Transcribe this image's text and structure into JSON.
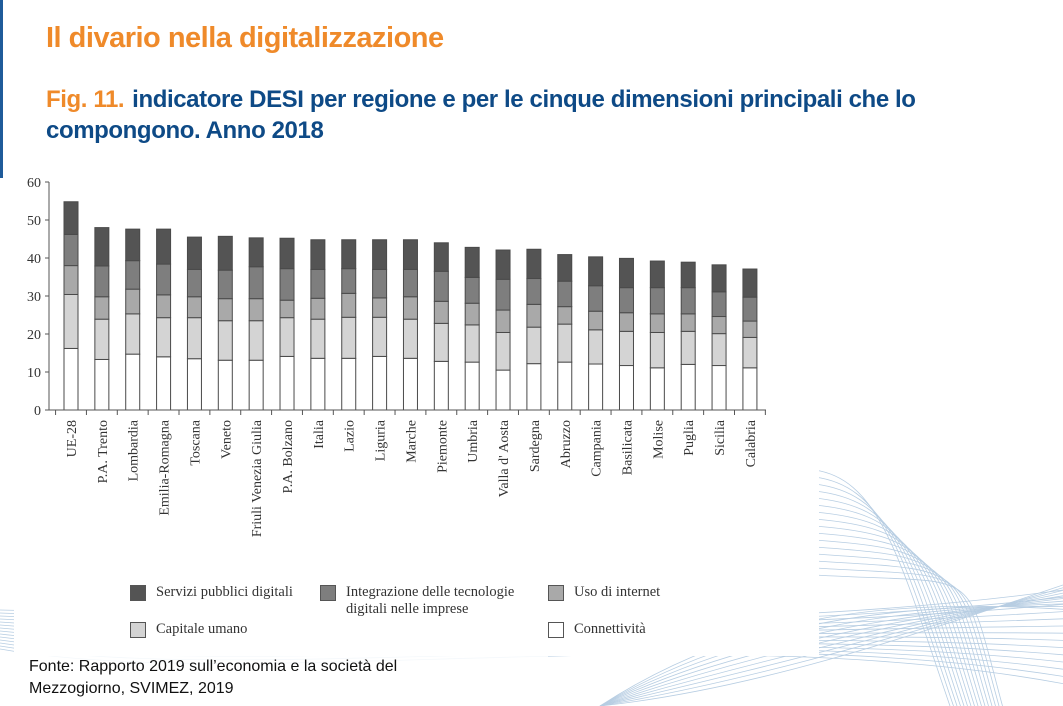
{
  "header": {
    "section_title": "Il divario nella digitalizzazione",
    "figure_number": "Fig. 11.",
    "figure_title": "indicatore DESI per regione e per le cinque dimensioni principali che lo compongono. Anno 2018"
  },
  "source": {
    "line1": "Fonte: Rapporto 2019 sull’economia e la società del",
    "line2": "Mezzogiorno, SVIMEZ, 2019"
  },
  "colors": {
    "title_orange": "#ef8a2a",
    "title_blue": "#0e4a86",
    "connettivita": "#ffffff",
    "capitale_umano": "#d4d4d4",
    "uso_internet": "#a9a9a9",
    "integrazione": "#7e7e7e",
    "servizi_pubblici": "#545454"
  },
  "chart_data": {
    "type": "bar",
    "stacked": true,
    "title": "",
    "xlabel": "",
    "ylabel": "",
    "ylim": [
      0,
      60
    ],
    "yticks": [
      0,
      10,
      20,
      30,
      40,
      50,
      60
    ],
    "grid": false,
    "legend_position": "bottom",
    "categories": [
      "UE-28",
      "P.A. Trento",
      "Lombardia",
      "Emilia-Romagna",
      "Toscana",
      "Veneto",
      "Friuli Venezia Giulia",
      "P.A. Bolzano",
      "Italia",
      "Lazio",
      "Liguria",
      "Marche",
      "Piemonte",
      "Umbria",
      "Valla d' Aosta",
      "Sardegna",
      "Abruzzo",
      "Campania",
      "Basilicata",
      "Molise",
      "Puglia",
      "Sicilia",
      "Calabria"
    ],
    "series": [
      {
        "name": "Connettività",
        "key": "connettivita",
        "values": [
          16.2,
          13.3,
          14.7,
          14.0,
          13.5,
          13.1,
          13.1,
          14.1,
          13.6,
          13.6,
          14.1,
          13.6,
          12.8,
          12.6,
          10.5,
          12.2,
          12.6,
          12.1,
          11.7,
          11.1,
          12.0,
          11.7,
          11.1
        ]
      },
      {
        "name": "Capitale umano",
        "key": "capitale_umano",
        "values": [
          14.2,
          10.6,
          10.6,
          10.3,
          10.8,
          10.4,
          10.4,
          10.2,
          10.3,
          10.8,
          10.3,
          10.3,
          10.0,
          9.8,
          9.9,
          9.6,
          10.0,
          9.0,
          9.0,
          9.3,
          8.7,
          8.4,
          8.0
        ]
      },
      {
        "name": "Uso di internet",
        "key": "uso_internet",
        "values": [
          7.6,
          5.9,
          6.5,
          6.0,
          5.5,
          5.8,
          5.8,
          4.6,
          5.5,
          6.3,
          5.1,
          5.9,
          5.8,
          5.7,
          5.9,
          6.0,
          4.6,
          4.9,
          4.9,
          4.9,
          4.6,
          4.5,
          4.3
        ]
      },
      {
        "name": "Integrazione delle tecnologie digitali nelle imprese",
        "key": "integrazione",
        "values": [
          8.2,
          8.1,
          7.5,
          8.1,
          7.2,
          7.5,
          8.4,
          8.3,
          7.6,
          6.5,
          7.5,
          7.2,
          7.9,
          6.8,
          8.1,
          6.8,
          6.7,
          6.7,
          6.6,
          6.9,
          6.9,
          6.5,
          6.3
        ]
      },
      {
        "name": "Servizi pubblici digitali",
        "key": "servizi_pubblici",
        "values": [
          8.6,
          10.1,
          8.3,
          9.2,
          8.5,
          8.9,
          7.6,
          8.0,
          7.8,
          7.6,
          7.8,
          7.8,
          7.5,
          7.9,
          7.7,
          7.7,
          7.0,
          7.6,
          7.7,
          7.0,
          6.7,
          7.1,
          7.4
        ]
      }
    ],
    "totals": [
      54.8,
      48.0,
      47.6,
      47.6,
      45.5,
      45.7,
      45.3,
      45.2,
      44.8,
      44.8,
      44.8,
      44.8,
      44.0,
      42.8,
      42.1,
      42.3,
      40.9,
      40.3,
      39.9,
      39.2,
      38.9,
      38.2,
      37.1
    ]
  },
  "legend": [
    {
      "label": "Servizi pubblici digitali",
      "key": "servizi_pubblici"
    },
    {
      "label": "Integrazione delle tecnologie\ndigitali nelle imprese",
      "key": "integrazione"
    },
    {
      "label": "Uso di internet",
      "key": "uso_internet"
    },
    {
      "label": "Capitale umano",
      "key": "capitale_umano"
    },
    {
      "label": "Connettività",
      "key": "connettivita"
    }
  ]
}
